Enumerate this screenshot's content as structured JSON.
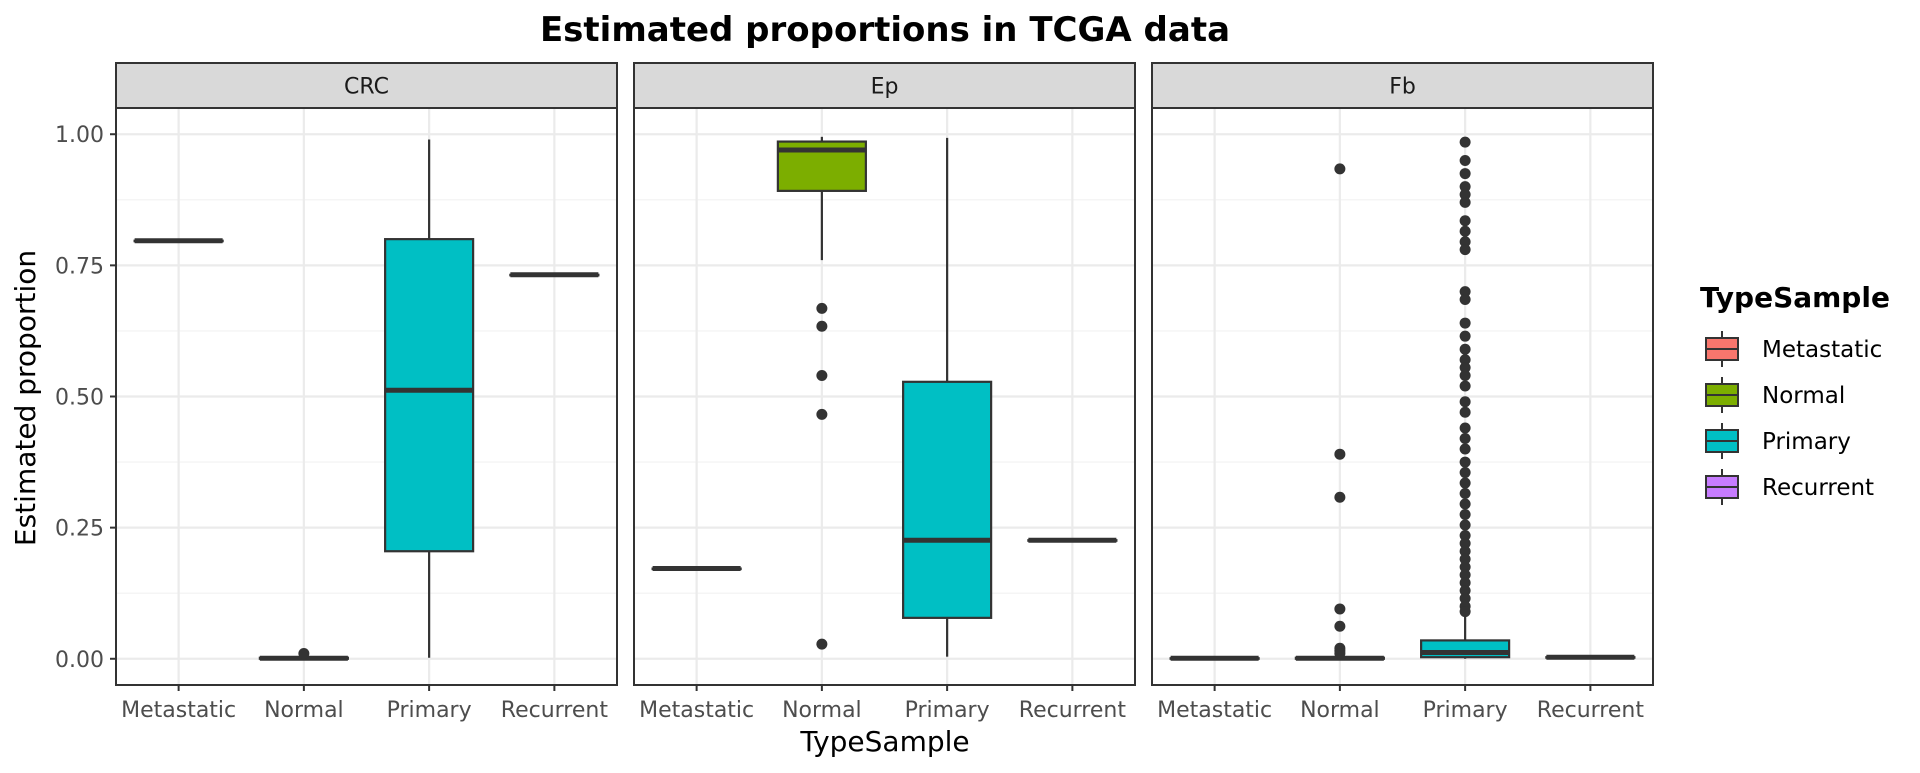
{
  "chart_data": {
    "type": "boxplot",
    "title": "Estimated proportions in TCGA data",
    "xlabel": "TypeSample",
    "ylabel": "Estimated proportion",
    "ylim": [
      -0.05,
      1.05
    ],
    "yticks": [
      "0.00",
      "0.25",
      "0.50",
      "0.75",
      "1.00"
    ],
    "ytick_values": [
      0,
      0.25,
      0.5,
      0.75,
      1.0
    ],
    "categories": [
      "Metastatic",
      "Normal",
      "Primary",
      "Recurrent"
    ],
    "colors": {
      "Metastatic": "#F8766D",
      "Normal": "#7CAE00",
      "Primary": "#00BFC4",
      "Recurrent": "#C77CFF"
    },
    "grid": true,
    "legend": {
      "title": "TypeSample",
      "position": "right",
      "entries": [
        "Metastatic",
        "Normal",
        "Primary",
        "Recurrent"
      ]
    },
    "panels": [
      {
        "name": "CRC",
        "boxes": [
          {
            "category": "Metastatic",
            "q1": 0.797,
            "median": 0.797,
            "q3": 0.797,
            "whisker_low": 0.797,
            "whisker_high": 0.797,
            "outliers": []
          },
          {
            "category": "Normal",
            "q1": 0.0,
            "median": 0.001,
            "q3": 0.002,
            "whisker_low": 0.0,
            "whisker_high": 0.004,
            "outliers": [
              0.01
            ]
          },
          {
            "category": "Primary",
            "q1": 0.205,
            "median": 0.512,
            "q3": 0.8,
            "whisker_low": 0.002,
            "whisker_high": 0.99,
            "outliers": []
          },
          {
            "category": "Recurrent",
            "q1": 0.732,
            "median": 0.732,
            "q3": 0.732,
            "whisker_low": 0.732,
            "whisker_high": 0.732,
            "outliers": []
          }
        ]
      },
      {
        "name": "Ep",
        "boxes": [
          {
            "category": "Metastatic",
            "q1": 0.172,
            "median": 0.172,
            "q3": 0.172,
            "whisker_low": 0.172,
            "whisker_high": 0.172,
            "outliers": []
          },
          {
            "category": "Normal",
            "q1": 0.892,
            "median": 0.97,
            "q3": 0.986,
            "whisker_low": 0.76,
            "whisker_high": 0.995,
            "outliers": [
              0.668,
              0.634,
              0.54,
              0.466,
              0.028
            ]
          },
          {
            "category": "Primary",
            "q1": 0.078,
            "median": 0.226,
            "q3": 0.528,
            "whisker_low": 0.004,
            "whisker_high": 0.993,
            "outliers": []
          },
          {
            "category": "Recurrent",
            "q1": 0.226,
            "median": 0.226,
            "q3": 0.226,
            "whisker_low": 0.226,
            "whisker_high": 0.226,
            "outliers": []
          }
        ]
      },
      {
        "name": "Fb",
        "boxes": [
          {
            "category": "Metastatic",
            "q1": 0.001,
            "median": 0.001,
            "q3": 0.001,
            "whisker_low": 0.001,
            "whisker_high": 0.001,
            "outliers": []
          },
          {
            "category": "Normal",
            "q1": 0.0,
            "median": 0.001,
            "q3": 0.002,
            "whisker_low": 0.0,
            "whisker_high": 0.004,
            "outliers": [
              0.934,
              0.39,
              0.308,
              0.095,
              0.062,
              0.02,
              0.015,
              0.01
            ]
          },
          {
            "category": "Primary",
            "q1": 0.003,
            "median": 0.012,
            "q3": 0.035,
            "whisker_low": 0.0,
            "whisker_high": 0.08,
            "outliers": [
              0.985,
              0.95,
              0.925,
              0.9,
              0.885,
              0.87,
              0.835,
              0.815,
              0.795,
              0.78,
              0.7,
              0.685,
              0.64,
              0.615,
              0.59,
              0.57,
              0.555,
              0.54,
              0.52,
              0.49,
              0.47,
              0.44,
              0.42,
              0.4,
              0.375,
              0.355,
              0.335,
              0.315,
              0.295,
              0.275,
              0.255,
              0.235,
              0.22,
              0.205,
              0.19,
              0.175,
              0.16,
              0.145,
              0.13,
              0.115,
              0.1,
              0.09
            ]
          },
          {
            "category": "Recurrent",
            "q1": 0.003,
            "median": 0.003,
            "q3": 0.003,
            "whisker_low": 0.003,
            "whisker_high": 0.003,
            "outliers": []
          }
        ]
      }
    ]
  }
}
